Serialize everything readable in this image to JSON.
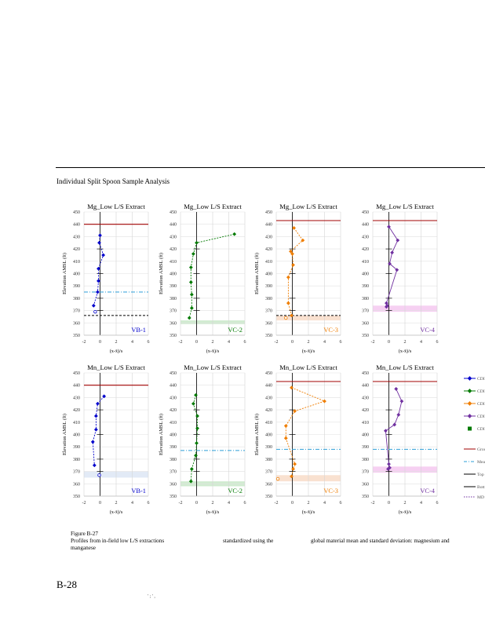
{
  "section_title": "Individual Split Spoon Sample Analysis",
  "caption": {
    "figure_number": "Figure B-27",
    "part1": "Profiles from in-field low L/S extractions",
    "part2": "standardized using the",
    "part3": "global material mean and standard deviation: magnesium and",
    "part4": "manganese"
  },
  "page_number": "B-28",
  "footer_mark": "' ; ' ,",
  "legend": {
    "entries": [
      {
        "label": "CDI",
        "color": "#0000cc",
        "marker": "diamond"
      },
      {
        "label": "CDI",
        "color": "#007a00",
        "marker": "diamond"
      },
      {
        "label": "CDI",
        "color": "#ef7d00",
        "marker": "diamond"
      },
      {
        "label": "CDI",
        "color": "#7030a0",
        "marker": "diamond"
      },
      {
        "label": "CDI",
        "color": "#007a00",
        "marker": "square"
      },
      {
        "label": "Grou",
        "color": "#a00000",
        "marker": "line"
      },
      {
        "label": "Mea",
        "color": "#2e9fd8",
        "marker": "dashdot"
      },
      {
        "label": "Top",
        "color": "#000000",
        "marker": "line"
      },
      {
        "label": "Bott",
        "color": "#000000",
        "marker": "line"
      },
      {
        "label": "MD",
        "color": "#7030a0",
        "marker": "dotted"
      }
    ]
  },
  "chart_data": [
    {
      "type": "line",
      "title": "Mg_Low L/S Extract",
      "well": "VB-1",
      "color": "#0000cc",
      "xlabel": "(x-x̄)/s",
      "ylabel": "Elevation AMSL (ft)",
      "xlim": [
        -2,
        6
      ],
      "ylim": [
        350,
        450
      ],
      "xticks": [
        "-2",
        "0",
        "2",
        "4",
        "6"
      ],
      "yticks": [
        "350",
        "360",
        "370",
        "380",
        "390",
        "400",
        "410",
        "420",
        "430",
        "440",
        "450"
      ],
      "x": [
        0.0,
        -0.1,
        0.4,
        -0.2,
        -0.2,
        -0.3,
        -0.8
      ],
      "y": [
        431,
        425,
        415,
        404,
        394,
        385,
        374
      ],
      "hollow": [
        {
          "x": -0.6,
          "y": 369
        }
      ],
      "ground_surface": 440,
      "mean_water_level": 385,
      "band": [],
      "band_color": "#2e9fd8",
      "bottom_line": 366,
      "md_line": null
    },
    {
      "type": "line",
      "title": "Mg_Low L/S Extract",
      "well": "VC-2",
      "color": "#007a00",
      "xlabel": "(x-x̄)/s",
      "ylabel": "Elevation AMSL (ft)",
      "xlim": [
        -2,
        6
      ],
      "ylim": [
        350,
        450
      ],
      "xticks": [
        "-2",
        "0",
        "2",
        "4",
        "6"
      ],
      "yticks": [
        "350",
        "360",
        "370",
        "380",
        "390",
        "400",
        "410",
        "420",
        "430",
        "440",
        "450"
      ],
      "x": [
        4.7,
        0.0,
        -0.4,
        -0.7,
        -0.7,
        -0.6,
        -0.6,
        -0.9
      ],
      "y": [
        432,
        425,
        416,
        405,
        393,
        383,
        372,
        364
      ],
      "hollow": [],
      "ground_surface": null,
      "mean_water_level": null,
      "band": [
        359,
        362
      ],
      "band_color": "#c8e8c8",
      "bottom_line": null,
      "md_line": null
    },
    {
      "type": "line",
      "title": "Mg_Low L/S Extract",
      "well": "VC-3",
      "color": "#ef7d00",
      "xlabel": "(x-x̄)/s",
      "ylabel": "Elevation AMSL (ft)",
      "xlim": [
        -2,
        6
      ],
      "ylim": [
        350,
        450
      ],
      "xticks": [
        "-2",
        "0",
        "2",
        "4",
        "6"
      ],
      "yticks": [
        "350",
        "360",
        "370",
        "380",
        "390",
        "400",
        "410",
        "420",
        "430",
        "440",
        "450"
      ],
      "x": [
        0.2,
        1.3,
        -0.2,
        0.0,
        0.1,
        -0.5,
        -0.5,
        -0.1
      ],
      "y": [
        437,
        427,
        418,
        416,
        407,
        397,
        376,
        366
      ],
      "hollow": [
        {
          "x": -0.8,
          "y": 364
        }
      ],
      "ground_surface": 443,
      "mean_water_level": null,
      "band": [
        362,
        366
      ],
      "band_color": "#f8dcc8",
      "bottom_line": 366,
      "md_line": null
    },
    {
      "type": "line",
      "title": "Mg_Low L/S Extract",
      "well": "VC-4",
      "color": "#7030a0",
      "xlabel": "(x-x̄)/s",
      "ylabel": "",
      "xlim": [
        -2,
        6
      ],
      "ylim": [
        350,
        450
      ],
      "xticks": [
        "-2",
        "0",
        "2",
        "4",
        "6"
      ],
      "yticks": [
        "350",
        "360",
        "370",
        "380",
        "390",
        "400",
        "410",
        "420",
        "430",
        "440",
        "450"
      ],
      "x": [
        0.0,
        1.1,
        0.4,
        0.1,
        1.0,
        -0.3,
        -0.2,
        -0.3
      ],
      "y": [
        438,
        427,
        417,
        408,
        403,
        376,
        374,
        373
      ],
      "hollow": [],
      "ground_surface": 443,
      "mean_water_level": null,
      "band": [
        369,
        374
      ],
      "band_color": "#f5c8f0",
      "bottom_line": null,
      "md_line": null
    },
    {
      "type": "line",
      "title": "Mn_Low L/S Extract",
      "well": "VB-1",
      "color": "#0000cc",
      "xlabel": "(x-x̄)/s",
      "ylabel": "Elevation AMSL (ft)",
      "xlim": [
        -2,
        6
      ],
      "ylim": [
        350,
        450
      ],
      "xticks": [
        "-2",
        "0",
        "2",
        "4",
        "6"
      ],
      "yticks": [
        "350",
        "360",
        "370",
        "380",
        "390",
        "400",
        "410",
        "420",
        "430",
        "440",
        "450"
      ],
      "x": [
        0.5,
        -0.3,
        -0.5,
        -0.5,
        -0.9,
        -0.7
      ],
      "y": [
        431,
        425,
        415,
        404,
        394,
        375
      ],
      "hollow": [
        {
          "x": -0.1,
          "y": 367
        }
      ],
      "ground_surface": 440,
      "mean_water_level": null,
      "band": [
        365,
        370
      ],
      "band_color": "#dde6f5",
      "bottom_line": null,
      "md_line": null
    },
    {
      "type": "line",
      "title": "Mn_Low L/S Extract",
      "well": "VC-2",
      "color": "#007a00",
      "xlabel": "(x-x̄)/s",
      "ylabel": "Elevation AMSL (ft)",
      "xlim": [
        -2,
        6
      ],
      "ylim": [
        350,
        450
      ],
      "xticks": [
        "-2",
        "0",
        "2",
        "4",
        "6"
      ],
      "yticks": [
        "350",
        "360",
        "370",
        "380",
        "390",
        "400",
        "410",
        "420",
        "430",
        "440",
        "450"
      ],
      "x": [
        -0.1,
        -0.4,
        0.1,
        0.1,
        0.0,
        -0.1,
        -0.6,
        -0.7
      ],
      "y": [
        432,
        425,
        415,
        405,
        393,
        383,
        372,
        362
      ],
      "hollow": [],
      "ground_surface": null,
      "mean_water_level": 387,
      "band": [
        358,
        362
      ],
      "band_color": "#c8e8c8",
      "bottom_line": null,
      "md_line": null
    },
    {
      "type": "line",
      "title": "Mn_Low L/S Extract",
      "well": "VC-3",
      "color": "#ef7d00",
      "xlabel": "(x-x̄)/s",
      "ylabel": "Elevation AMSL (ft)",
      "xlim": [
        -2,
        6
      ],
      "ylim": [
        350,
        450
      ],
      "xticks": [
        "-2",
        "0",
        "2",
        "4",
        "6"
      ],
      "yticks": [
        "350",
        "360",
        "370",
        "380",
        "390",
        "400",
        "410",
        "420",
        "430",
        "440",
        "450"
      ],
      "x": [
        -0.1,
        4.0,
        0.3,
        -0.8,
        -0.8,
        0.3,
        0.1,
        -0.1
      ],
      "y": [
        438,
        427,
        419,
        407,
        397,
        376,
        372,
        366
      ],
      "hollow": [
        {
          "x": -1.8,
          "y": 364
        }
      ],
      "ground_surface": 443,
      "mean_water_level": 388,
      "band": [
        362,
        367
      ],
      "band_color": "#f8dcc8",
      "bottom_line": null,
      "md_line": null
    },
    {
      "type": "line",
      "title": "Mn_Low L/S Extract",
      "well": "VC-4",
      "color": "#7030a0",
      "xlabel": "(x-x̄)/s",
      "ylabel": "",
      "xlim": [
        -2,
        6
      ],
      "ylim": [
        350,
        450
      ],
      "xticks": [
        "-2",
        "0",
        "2",
        "4",
        "6"
      ],
      "yticks": [
        "350",
        "360",
        "370",
        "380",
        "390",
        "400",
        "410",
        "420",
        "430",
        "440",
        "450"
      ],
      "x": [
        0.9,
        1.6,
        1.2,
        0.7,
        -0.4,
        0.0,
        0.1,
        -0.1
      ],
      "y": [
        437,
        427,
        416,
        408,
        403,
        376,
        373,
        372
      ],
      "hollow": [],
      "ground_surface": 443,
      "mean_water_level": 388,
      "band": [
        369,
        374
      ],
      "band_color": "#f5c8f0",
      "bottom_line": null,
      "md_line": null
    }
  ]
}
